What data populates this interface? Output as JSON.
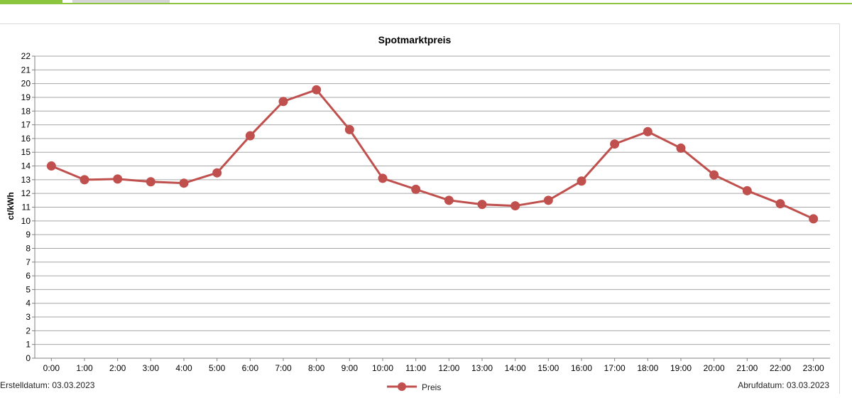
{
  "chart_data": {
    "type": "line",
    "title": "Spotmarktpreis",
    "ylabel": "ct/kWh",
    "xlabel": "",
    "ylim": [
      0,
      22
    ],
    "y_ticks": [
      0,
      1,
      2,
      3,
      4,
      5,
      6,
      7,
      8,
      9,
      10,
      11,
      12,
      13,
      14,
      15,
      16,
      17,
      18,
      19,
      20,
      21,
      22
    ],
    "grid": true,
    "legend_position": "bottom-center",
    "categories": [
      "0:00",
      "1:00",
      "2:00",
      "3:00",
      "4:00",
      "5:00",
      "6:00",
      "7:00",
      "8:00",
      "9:00",
      "10:00",
      "11:00",
      "12:00",
      "13:00",
      "14:00",
      "15:00",
      "16:00",
      "17:00",
      "18:00",
      "19:00",
      "20:00",
      "21:00",
      "22:00",
      "23:00"
    ],
    "series": [
      {
        "name": "Preis",
        "color": "#c0504d",
        "values": [
          14.0,
          13.0,
          13.05,
          12.85,
          12.75,
          13.5,
          16.2,
          18.7,
          19.55,
          16.65,
          13.1,
          12.3,
          11.5,
          11.2,
          11.1,
          11.5,
          12.9,
          15.6,
          16.5,
          15.3,
          13.35,
          12.2,
          11.25,
          10.15
        ]
      }
    ]
  },
  "footer": {
    "created": "Erstelldatum: 03.03.2023",
    "retrieved": "Abrufdatum: 03.03.2023"
  },
  "colors": {
    "accent": "#8cc63f",
    "tab_inactive": "#d6d6d6"
  }
}
